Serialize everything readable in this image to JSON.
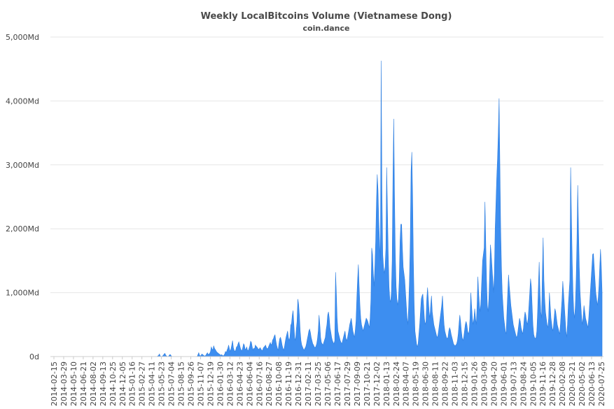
{
  "chart_data": {
    "type": "area",
    "title": "Weekly LocalBitcoins Volume (Vietnamese Dong)",
    "subtitle": "coin.dance",
    "xlabel": "",
    "ylabel": "",
    "ylim": [
      0,
      5000
    ],
    "ytick_values": [
      0,
      1000,
      2000,
      3000,
      4000,
      5000
    ],
    "ytick_labels": [
      "0d",
      "1,000Md",
      "2,000Md",
      "3,000Md",
      "4,000Md",
      "5,000Md"
    ],
    "grid": true,
    "legend": "none",
    "color": "#3d8ef0",
    "x_tick_labels": [
      "2014-02-15",
      "2014-03-29",
      "2014-05-10",
      "2014-06-21",
      "2014-08-02",
      "2014-09-13",
      "2014-10-25",
      "2014-12-05",
      "2015-01-16",
      "2015-02-27",
      "2015-04-11",
      "2015-05-23",
      "2015-07-04",
      "2015-08-15",
      "2015-09-26",
      "2015-11-07",
      "2015-12-19",
      "2016-01-30",
      "2016-03-12",
      "2016-04-23",
      "2016-06-04",
      "2016-07-16",
      "2016-08-27",
      "2016-10-08",
      "2016-11-19",
      "2016-12-31",
      "2017-02-11",
      "2017-03-25",
      "2017-05-06",
      "2017-06-17",
      "2017-07-29",
      "2017-09-09",
      "2017-10-21",
      "2017-12-02",
      "2018-01-13",
      "2018-02-24",
      "2018-04-07",
      "2018-05-19",
      "2018-06-30",
      "2018-08-11",
      "2018-09-22",
      "2018-11-03",
      "2018-12-15",
      "2019-01-26",
      "2019-03-09",
      "2019-04-20",
      "2019-06-01",
      "2019-07-13",
      "2019-08-24",
      "2019-10-05",
      "2019-11-16",
      "2019-12-28",
      "2020-02-08",
      "2020-03-21",
      "2020-05-02",
      "2020-06-13",
      "2020-07-25"
    ],
    "values": [
      0,
      0,
      0,
      0,
      0,
      0,
      0,
      0,
      0,
      0,
      0,
      0,
      0,
      0,
      0,
      0,
      0,
      0,
      0,
      0,
      0,
      0,
      0,
      0,
      0,
      0,
      0,
      0,
      0,
      0,
      0,
      0,
      0,
      0,
      0,
      0,
      0,
      0,
      0,
      0,
      0,
      0,
      0,
      0,
      0,
      0,
      0,
      0,
      0,
      0,
      0,
      0,
      0,
      0,
      0,
      0,
      0,
      0,
      0,
      0,
      0,
      0,
      0,
      0,
      0,
      0,
      0,
      0,
      0,
      0,
      0,
      0,
      0,
      0,
      0,
      0,
      0,
      0,
      0,
      0,
      0,
      0,
      0,
      0,
      0,
      0,
      0,
      0,
      0,
      0,
      0,
      0,
      0,
      0,
      0,
      0,
      0,
      0,
      0,
      0,
      0,
      0,
      0,
      0,
      0,
      0,
      0,
      0,
      0,
      0,
      0,
      0,
      0,
      0,
      0,
      0,
      0,
      0,
      0,
      0,
      0,
      0,
      0,
      0,
      0,
      0,
      0,
      0,
      0,
      0,
      0,
      0,
      0,
      0,
      10,
      20,
      40,
      10,
      0,
      0,
      10,
      20,
      40,
      50,
      20,
      10,
      0,
      0,
      10,
      30,
      30,
      10,
      0,
      0,
      0,
      0,
      0,
      0,
      0,
      0,
      0,
      0,
      0,
      0,
      0,
      0,
      0,
      0,
      0,
      0,
      0,
      0,
      0,
      0,
      0,
      0,
      0,
      0,
      0,
      0,
      0,
      0,
      0,
      0,
      0,
      30,
      60,
      20,
      10,
      20,
      40,
      30,
      20,
      10,
      10,
      20,
      40,
      60,
      30,
      40,
      50,
      80,
      150,
      120,
      100,
      170,
      130,
      110,
      90,
      70,
      60,
      50,
      40,
      30,
      20,
      30,
      20,
      10,
      20,
      40,
      80,
      60,
      100,
      130,
      180,
      120,
      80,
      120,
      180,
      250,
      140,
      100,
      80,
      100,
      150,
      160,
      200,
      230,
      180,
      130,
      100,
      90,
      140,
      200,
      180,
      110,
      120,
      150,
      100,
      90,
      130,
      170,
      240,
      220,
      150,
      100,
      130,
      120,
      180,
      160,
      150,
      130,
      110,
      120,
      140,
      120,
      100,
      90,
      130,
      150,
      160,
      180,
      140,
      120,
      130,
      160,
      190,
      220,
      180,
      200,
      260,
      280,
      320,
      340,
      250,
      180,
      130,
      100,
      200,
      280,
      300,
      250,
      180,
      130,
      100,
      150,
      230,
      300,
      350,
      400,
      300,
      250,
      300,
      490,
      520,
      650,
      720,
      500,
      300,
      250,
      420,
      550,
      900,
      820,
      650,
      400,
      250,
      180,
      150,
      120,
      100,
      130,
      150,
      200,
      270,
      330,
      400,
      430,
      380,
      300,
      250,
      200,
      180,
      150,
      140,
      160,
      200,
      280,
      400,
      650,
      500,
      300,
      220,
      200,
      180,
      220,
      260,
      300,
      420,
      500,
      650,
      700,
      600,
      450,
      380,
      300,
      250,
      220,
      200,
      250,
      1320,
      1000,
      600,
      400,
      350,
      300,
      250,
      220,
      200,
      250,
      300,
      350,
      400,
      300,
      250,
      280,
      350,
      420,
      500,
      550,
      600,
      500,
      400,
      350,
      300,
      400,
      550,
      900,
      1200,
      1440,
      1100,
      800,
      600,
      500,
      450,
      400,
      450,
      500,
      550,
      600,
      580,
      550,
      500,
      450,
      600,
      900,
      1700,
      1600,
      1300,
      1100,
      1400,
      1800,
      2400,
      2850,
      2600,
      2100,
      1800,
      1500,
      4630,
      2600,
      1600,
      1400,
      1300,
      1400,
      1700,
      2960,
      2300,
      1600,
      1100,
      900,
      850,
      1000,
      1500,
      2800,
      3720,
      2500,
      1600,
      1100,
      900,
      800,
      900,
      1200,
      1800,
      2070,
      2070,
      1700,
      1400,
      1300,
      1200,
      1000,
      800,
      600,
      500,
      800,
      1200,
      1800,
      2900,
      3200,
      2500,
      1500,
      800,
      400,
      300,
      200,
      150,
      200,
      350,
      500,
      700,
      900,
      950,
      980,
      800,
      600,
      500,
      550,
      900,
      1080,
      900,
      700,
      600,
      800,
      950,
      700,
      600,
      500,
      450,
      400,
      350,
      300,
      320,
      400,
      500,
      600,
      700,
      800,
      950,
      700,
      500,
      400,
      350,
      300,
      280,
      300,
      400,
      450,
      420,
      350,
      300,
      250,
      200,
      180,
      170,
      180,
      200,
      250,
      350,
      500,
      650,
      550,
      400,
      300,
      250,
      300,
      400,
      500,
      550,
      500,
      400,
      350,
      400,
      600,
      1000,
      800,
      600,
      500,
      600,
      750,
      600,
      500,
      800,
      1250,
      1000,
      800,
      700,
      900,
      1200,
      1500,
      1600,
      1700,
      2420,
      1800,
      1200,
      800,
      700,
      900,
      1300,
      1750,
      1600,
      1400,
      1200,
      1000,
      1300,
      2000,
      2400,
      2800,
      3100,
      3500,
      4040,
      3000,
      2000,
      1400,
      1000,
      800,
      600,
      500,
      400,
      350,
      700,
      1000,
      1280,
      1100,
      950,
      800,
      700,
      600,
      500,
      450,
      400,
      350,
      300,
      320,
      400,
      500,
      600,
      550,
      450,
      400,
      350,
      450,
      600,
      700,
      650,
      550,
      500,
      600,
      800,
      1000,
      1220,
      1100,
      800,
      500,
      350,
      300,
      280,
      300,
      400,
      700,
      1100,
      1480,
      1000,
      700,
      600,
      1300,
      1860,
      1200,
      900,
      700,
      600,
      500,
      450,
      600,
      1000,
      800,
      600,
      500,
      400,
      450,
      600,
      750,
      700,
      600,
      500,
      450,
      400,
      350,
      500,
      700,
      900,
      1180,
      1000,
      800,
      600,
      400,
      300,
      500,
      800,
      1000,
      1200,
      2960,
      2200,
      1500,
      1000,
      700,
      600,
      800,
      1200,
      1800,
      2680,
      2000,
      1400,
      1000,
      800,
      600,
      500,
      650,
      800,
      700,
      600,
      550,
      500,
      450,
      600,
      800,
      1000,
      1200,
      1400,
      1600,
      1610,
      1400,
      1200,
      1000,
      900,
      800,
      900,
      1100,
      1400,
      1680,
      1400,
      1000
    ]
  }
}
